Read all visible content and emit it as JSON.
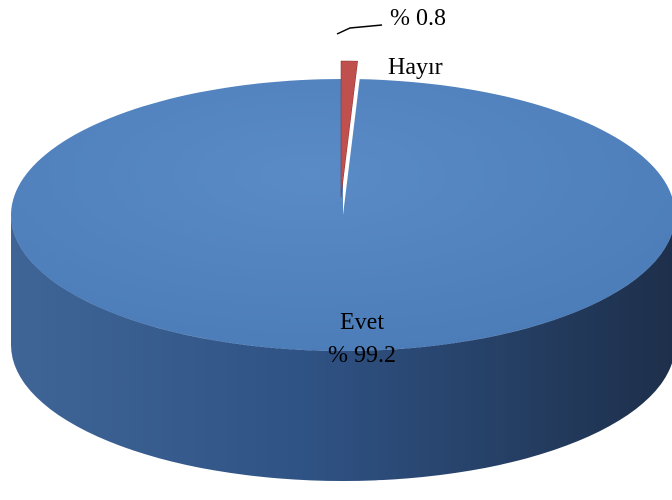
{
  "chart_data": {
    "type": "pie",
    "style": "3d",
    "slices": [
      {
        "label": "Evet",
        "value": 99.2,
        "value_label": "% 99.2",
        "color": "#4f81bd",
        "side_color": "#2c4a73"
      },
      {
        "label": "Hayır",
        "value": 0.8,
        "value_label": "% 0.8",
        "color": "#c0504d",
        "side_color": "#7a2f2d"
      }
    ],
    "legend": "none"
  }
}
